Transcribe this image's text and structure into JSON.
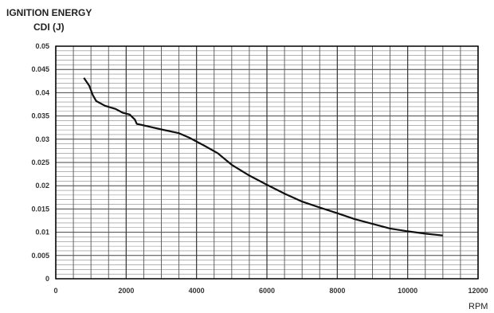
{
  "chart_data": {
    "type": "line",
    "title": "IGNITION ENERGY",
    "subtitle": "CDI (J)",
    "xlabel": "RPM",
    "ylabel": "",
    "xlim": [
      0,
      12000
    ],
    "ylim": [
      0,
      0.05
    ],
    "x_ticks": [
      "0",
      "2000",
      "4000",
      "6000",
      "8000",
      "10000",
      "12000"
    ],
    "y_ticks": [
      "0",
      "0.005",
      "0.01",
      "0.015",
      "0.02",
      "0.025",
      "0.03",
      "0.035",
      "0.04",
      "0.045",
      "0.05"
    ],
    "grid": true,
    "series": [
      {
        "x": [
          800,
          950,
          1050,
          1150,
          1400,
          1700,
          1900,
          2100,
          2250,
          2300,
          2600,
          3000,
          3500,
          3800,
          4200,
          4600,
          5000,
          5500,
          6000,
          6500,
          7000,
          7500,
          8000,
          8500,
          9000,
          9500,
          10000,
          10500,
          11000
        ],
        "y": [
          0.0432,
          0.0415,
          0.0395,
          0.0382,
          0.0372,
          0.0365,
          0.0357,
          0.0353,
          0.0342,
          0.0333,
          0.0328,
          0.0321,
          0.0313,
          0.0303,
          0.0287,
          0.027,
          0.0245,
          0.0222,
          0.0202,
          0.0183,
          0.0166,
          0.0153,
          0.0141,
          0.0128,
          0.0118,
          0.0108,
          0.0102,
          0.0097,
          0.0093
        ],
        "color": "#111111"
      }
    ]
  }
}
